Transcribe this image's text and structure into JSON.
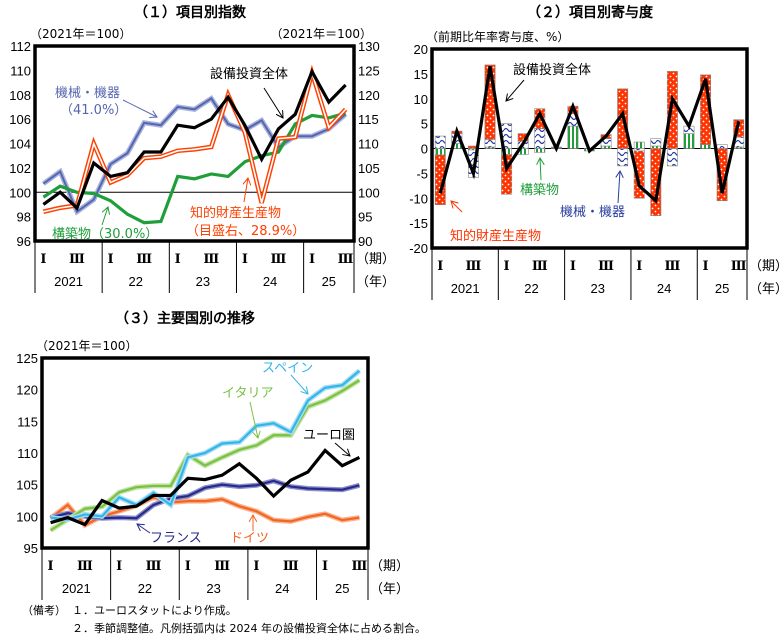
{
  "notes": {
    "label": "（備考）",
    "items": [
      "１．ユーロスタットにより作成。",
      "２．季節調整値。凡例括弧内は 2024 年の設備投資全体に占める割合。"
    ]
  },
  "chart_data": [
    {
      "type": "line",
      "title": "（１）項目別指数",
      "unit_left": "（2021年＝100）",
      "unit_right": "（2021年＝100）",
      "ylim": [
        96,
        112
      ],
      "ystep": 2,
      "ylim_right": [
        90,
        130
      ],
      "ystep_right": 5,
      "reference_line": 100,
      "quarter_labels": [
        "Ⅰ",
        "Ⅲ"
      ],
      "years": [
        "2021",
        "22",
        "23",
        "24",
        "25"
      ],
      "period_label": "（期）",
      "year_label": "（年）",
      "n": 19,
      "series": [
        {
          "name": "機械・機器",
          "sub": "（41.0%）",
          "axis": "left",
          "color": "#5566b0",
          "values": [
            100.7,
            101.7,
            98.4,
            99.4,
            102.3,
            103.2,
            105.7,
            105.5,
            107.0,
            106.8,
            107.7,
            105.6,
            105.1,
            105.9,
            103.7,
            104.6,
            104.6,
            105.2,
            106.4
          ]
        },
        {
          "name": "構築物（30.0%）",
          "axis": "left",
          "color": "#1f9e3a",
          "values": [
            99.6,
            100.5,
            100.0,
            99.9,
            99.3,
            98.2,
            97.5,
            97.6,
            101.3,
            101.1,
            101.5,
            101.3,
            102.5,
            103.0,
            103.3,
            105.6,
            106.3,
            106.1,
            106.5
          ]
        },
        {
          "name": "知的財産生産物",
          "sub": "（目盛右、28.9%）",
          "axis": "right",
          "color": "#ff4000",
          "values": [
            96.0,
            96.8,
            97.3,
            110.0,
            102.0,
            103.5,
            107.0,
            107.3,
            108.5,
            108.8,
            109.3,
            120.0,
            112.3,
            97.8,
            111.0,
            111.3,
            124.5,
            113.3,
            117.0
          ]
        },
        {
          "name": "設備投資全体",
          "axis": "left",
          "color": "#000000",
          "values": [
            99.0,
            100.0,
            98.7,
            102.4,
            101.3,
            101.6,
            103.3,
            103.3,
            105.5,
            105.3,
            106.0,
            107.8,
            105.5,
            102.7,
            105.2,
            106.4,
            109.9,
            107.4,
            108.8
          ]
        }
      ]
    },
    {
      "type": "bar",
      "stacked": true,
      "title": "（２）項目別寄与度",
      "unit_left": "（前期比年率寄与度、%）",
      "ylim": [
        -20,
        20
      ],
      "ystep": 5,
      "quarter_labels": [
        "Ⅰ",
        "Ⅲ"
      ],
      "years": [
        "2021",
        "22",
        "23",
        "24",
        "25"
      ],
      "period_label": "（期）",
      "year_label": "（年）",
      "n": 19,
      "series": [
        {
          "name": "知的財産生産物",
          "kind": "bar",
          "color": "#ff3300",
          "values": [
            -10,
            0.5,
            0.5,
            15,
            -8,
            1.5,
            4,
            0.1,
            1.5,
            0,
            0.8,
            12,
            -9.5,
            -13.5,
            15.5,
            0,
            14,
            -10.5,
            3.5
          ]
        },
        {
          "name": "機械・機器",
          "kind": "bar",
          "color": "#2a3da0",
          "values": [
            2.5,
            2,
            -5.5,
            1.5,
            5,
            1.5,
            4,
            0.1,
            2.5,
            0,
            1.5,
            -3.5,
            -0.5,
            1.5,
            -3.5,
            1.5,
            0,
            0.8,
            2
          ]
        },
        {
          "name": "構築物",
          "kind": "bar",
          "color": "#1f9e3a",
          "values": [
            -1.3,
            1,
            -0.3,
            0.3,
            -1.2,
            -1.2,
            -0.8,
            0.1,
            4.5,
            -0.5,
            0.5,
            0,
            1.3,
            0.5,
            0,
            3,
            0.8,
            0,
            0.3
          ]
        },
        {
          "name": "設備投資全体",
          "kind": "line",
          "color": "#000000",
          "values": [
            -9,
            3.5,
            -5,
            16.5,
            -4,
            1,
            7,
            0,
            8.5,
            -0.5,
            2.5,
            7,
            -7.5,
            -10.5,
            10,
            4.5,
            14,
            -9,
            5.5
          ]
        }
      ]
    },
    {
      "type": "line",
      "title": "（３）主要国別の推移",
      "unit_left": "（2021年＝100）",
      "ylim": [
        95,
        125
      ],
      "ystep": 5,
      "quarter_labels": [
        "Ⅰ",
        "Ⅲ"
      ],
      "years": [
        "2021",
        "22",
        "23",
        "24",
        "25"
      ],
      "period_label": "（期）",
      "year_label": "（年）",
      "n": 19,
      "series": [
        {
          "name": "ドイツ",
          "color": "#f26522",
          "values": [
            99.7,
            101.8,
            98.6,
            100.0,
            100.8,
            101.7,
            103.0,
            102.2,
            102.4,
            102.4,
            102.7,
            101.6,
            100.8,
            99.4,
            99.2,
            99.9,
            100.4,
            99.4,
            99.8
          ]
        },
        {
          "name": "フランス",
          "color": "#262a8c",
          "values": [
            99.8,
            100.5,
            100.0,
            99.7,
            99.8,
            99.7,
            101.8,
            102.8,
            103.2,
            104.5,
            105.0,
            104.7,
            104.9,
            105.6,
            104.7,
            104.4,
            104.3,
            104.2,
            104.9
          ]
        },
        {
          "name": "イタリア",
          "color": "#7ac143",
          "values": [
            97.8,
            99.5,
            101.2,
            101.5,
            103.8,
            104.6,
            104.8,
            104.8,
            109.7,
            108.0,
            109.3,
            110.5,
            111.2,
            112.8,
            112.8,
            117.3,
            118.3,
            119.8,
            121.5
          ]
        },
        {
          "name": "スペイン",
          "color": "#33b5e8",
          "values": [
            99.8,
            99.5,
            100.3,
            100.0,
            103.0,
            101.8,
            103.7,
            101.8,
            109.3,
            110.0,
            111.5,
            111.7,
            114.3,
            114.7,
            113.3,
            118.3,
            120.3,
            120.7,
            123.0
          ]
        },
        {
          "name": "ユーロ圏",
          "color": "#000000",
          "values": [
            99.0,
            99.8,
            98.7,
            102.5,
            101.3,
            101.6,
            103.3,
            103.3,
            106.0,
            105.8,
            106.5,
            108.3,
            106.0,
            103.2,
            105.7,
            107.0,
            110.4,
            108.0,
            109.3
          ]
        }
      ]
    }
  ]
}
